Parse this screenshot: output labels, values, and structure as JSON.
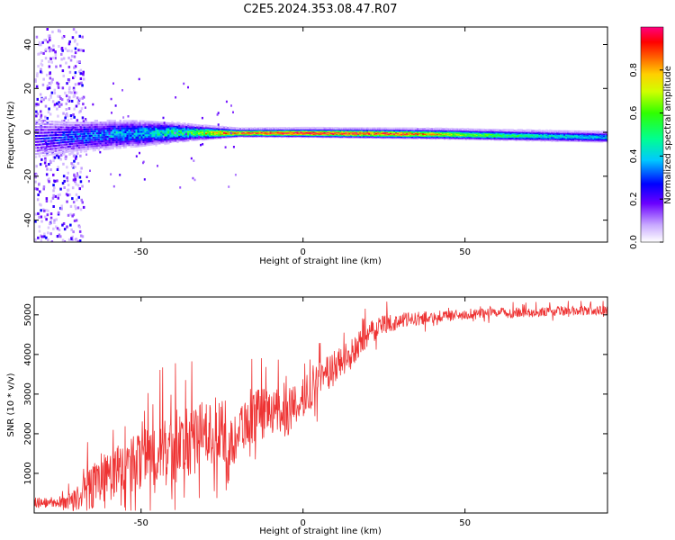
{
  "title": "C2E5.2024.353.08.47.R07",
  "chart_data": [
    {
      "type": "heatmap",
      "xlabel": "Height of straight line (km)",
      "ylabel": "Frequency (Hz)",
      "xlim": [
        -83,
        94
      ],
      "ylim": [
        -50,
        48
      ],
      "xticks": [
        -50,
        0,
        50
      ],
      "yticks": [
        -40,
        -20,
        0,
        20,
        40
      ],
      "colorbar": {
        "label": "Normalized spectral amplitude",
        "range": [
          0,
          1
        ],
        "ticks": [
          "0.0",
          "0.2",
          "0.4",
          "0.6",
          "0.8"
        ]
      },
      "ridge": {
        "frequency_hz": [
          [
            -83,
            -3
          ],
          [
            -60,
            -1
          ],
          [
            -40,
            0
          ],
          [
            0,
            0
          ],
          [
            40,
            -0.5
          ],
          [
            94,
            -2
          ]
        ],
        "amplitude": [
          [
            -83,
            0.22
          ],
          [
            -70,
            0.3
          ],
          [
            -50,
            0.4
          ],
          [
            -35,
            0.55
          ],
          [
            -25,
            0.85
          ],
          [
            -15,
            0.95
          ],
          [
            0,
            0.97
          ],
          [
            30,
            0.9
          ],
          [
            50,
            0.65
          ],
          [
            75,
            0.45
          ],
          [
            94,
            0.4
          ]
        ],
        "spread_hz": [
          [
            -83,
            12
          ],
          [
            -70,
            9
          ],
          [
            -50,
            7
          ],
          [
            -30,
            3
          ],
          [
            -20,
            1.5
          ],
          [
            94,
            2.5
          ]
        ]
      },
      "scatter_zone": {
        "x_range": [
          -83,
          -68
        ],
        "y_range": [
          -50,
          48
        ]
      }
    },
    {
      "type": "line",
      "xlabel": "Height of straight line (km)",
      "ylabel": "SNR (10 * v/v)",
      "xlim": [
        -83,
        94
      ],
      "ylim": [
        0,
        5450
      ],
      "xticks": [
        -50,
        0,
        50
      ],
      "yticks": [
        1000,
        2000,
        3000,
        4000,
        5000
      ],
      "color": "#ee3333",
      "series": [
        {
          "envelope_x": [
            -83,
            -75,
            -70,
            -65,
            -60,
            -55,
            -50,
            -45,
            -40,
            -35,
            -30,
            -25,
            -24,
            -20,
            -15,
            -10,
            -5,
            0,
            5,
            10,
            15,
            20,
            25,
            30,
            40,
            50,
            60,
            70,
            80,
            94
          ],
          "envelope_y": [
            250,
            250,
            350,
            700,
            1000,
            1100,
            1300,
            1500,
            1600,
            1800,
            2000,
            2200,
            1200,
            2200,
            2400,
            2600,
            2500,
            2900,
            3300,
            3700,
            4000,
            4500,
            4750,
            4850,
            4950,
            5000,
            5050,
            5050,
            5100,
            5100
          ],
          "noise_amp": [
            150,
            100,
            300,
            600,
            700,
            700,
            800,
            900,
            900,
            900,
            900,
            800,
            800,
            700,
            700,
            600,
            600,
            500,
            500,
            450,
            400,
            300,
            250,
            200,
            150,
            130,
            130,
            120,
            120,
            120
          ]
        }
      ]
    }
  ]
}
